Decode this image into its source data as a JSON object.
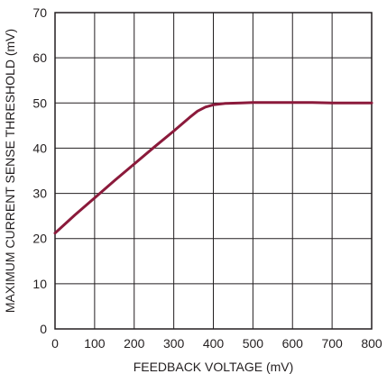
{
  "chart_data": {
    "type": "line",
    "xlabel": "FEEDBACK VOLTAGE (mV)",
    "ylabel": "MAXIMUM CURRENT SENSE THRESHOLD (mV)",
    "xlim": [
      0,
      800
    ],
    "ylim": [
      0,
      70
    ],
    "xticks": [
      0,
      100,
      200,
      300,
      400,
      500,
      600,
      700,
      800
    ],
    "yticks": [
      0,
      10,
      20,
      30,
      40,
      50,
      60,
      70
    ],
    "xtick_labels": [
      "0",
      "100",
      "200",
      "300",
      "400",
      "500",
      "600",
      "700",
      "800"
    ],
    "ytick_labels": [
      "0",
      "10",
      "20",
      "30",
      "40",
      "50",
      "60",
      "70"
    ],
    "grid": true,
    "legend": "none",
    "series": [
      {
        "color": "#8b1a3b",
        "x": [
          0,
          50,
          100,
          150,
          200,
          250,
          300,
          340,
          360,
          380,
          400,
          430,
          470,
          500,
          550,
          600,
          650,
          700,
          750,
          800
        ],
        "y": [
          21.2,
          25.2,
          29.0,
          32.8,
          36.5,
          40.2,
          43.8,
          46.8,
          48.2,
          49.1,
          49.6,
          49.9,
          50.0,
          50.1,
          50.1,
          50.1,
          50.1,
          50.0,
          50.0,
          50.0
        ]
      }
    ]
  }
}
